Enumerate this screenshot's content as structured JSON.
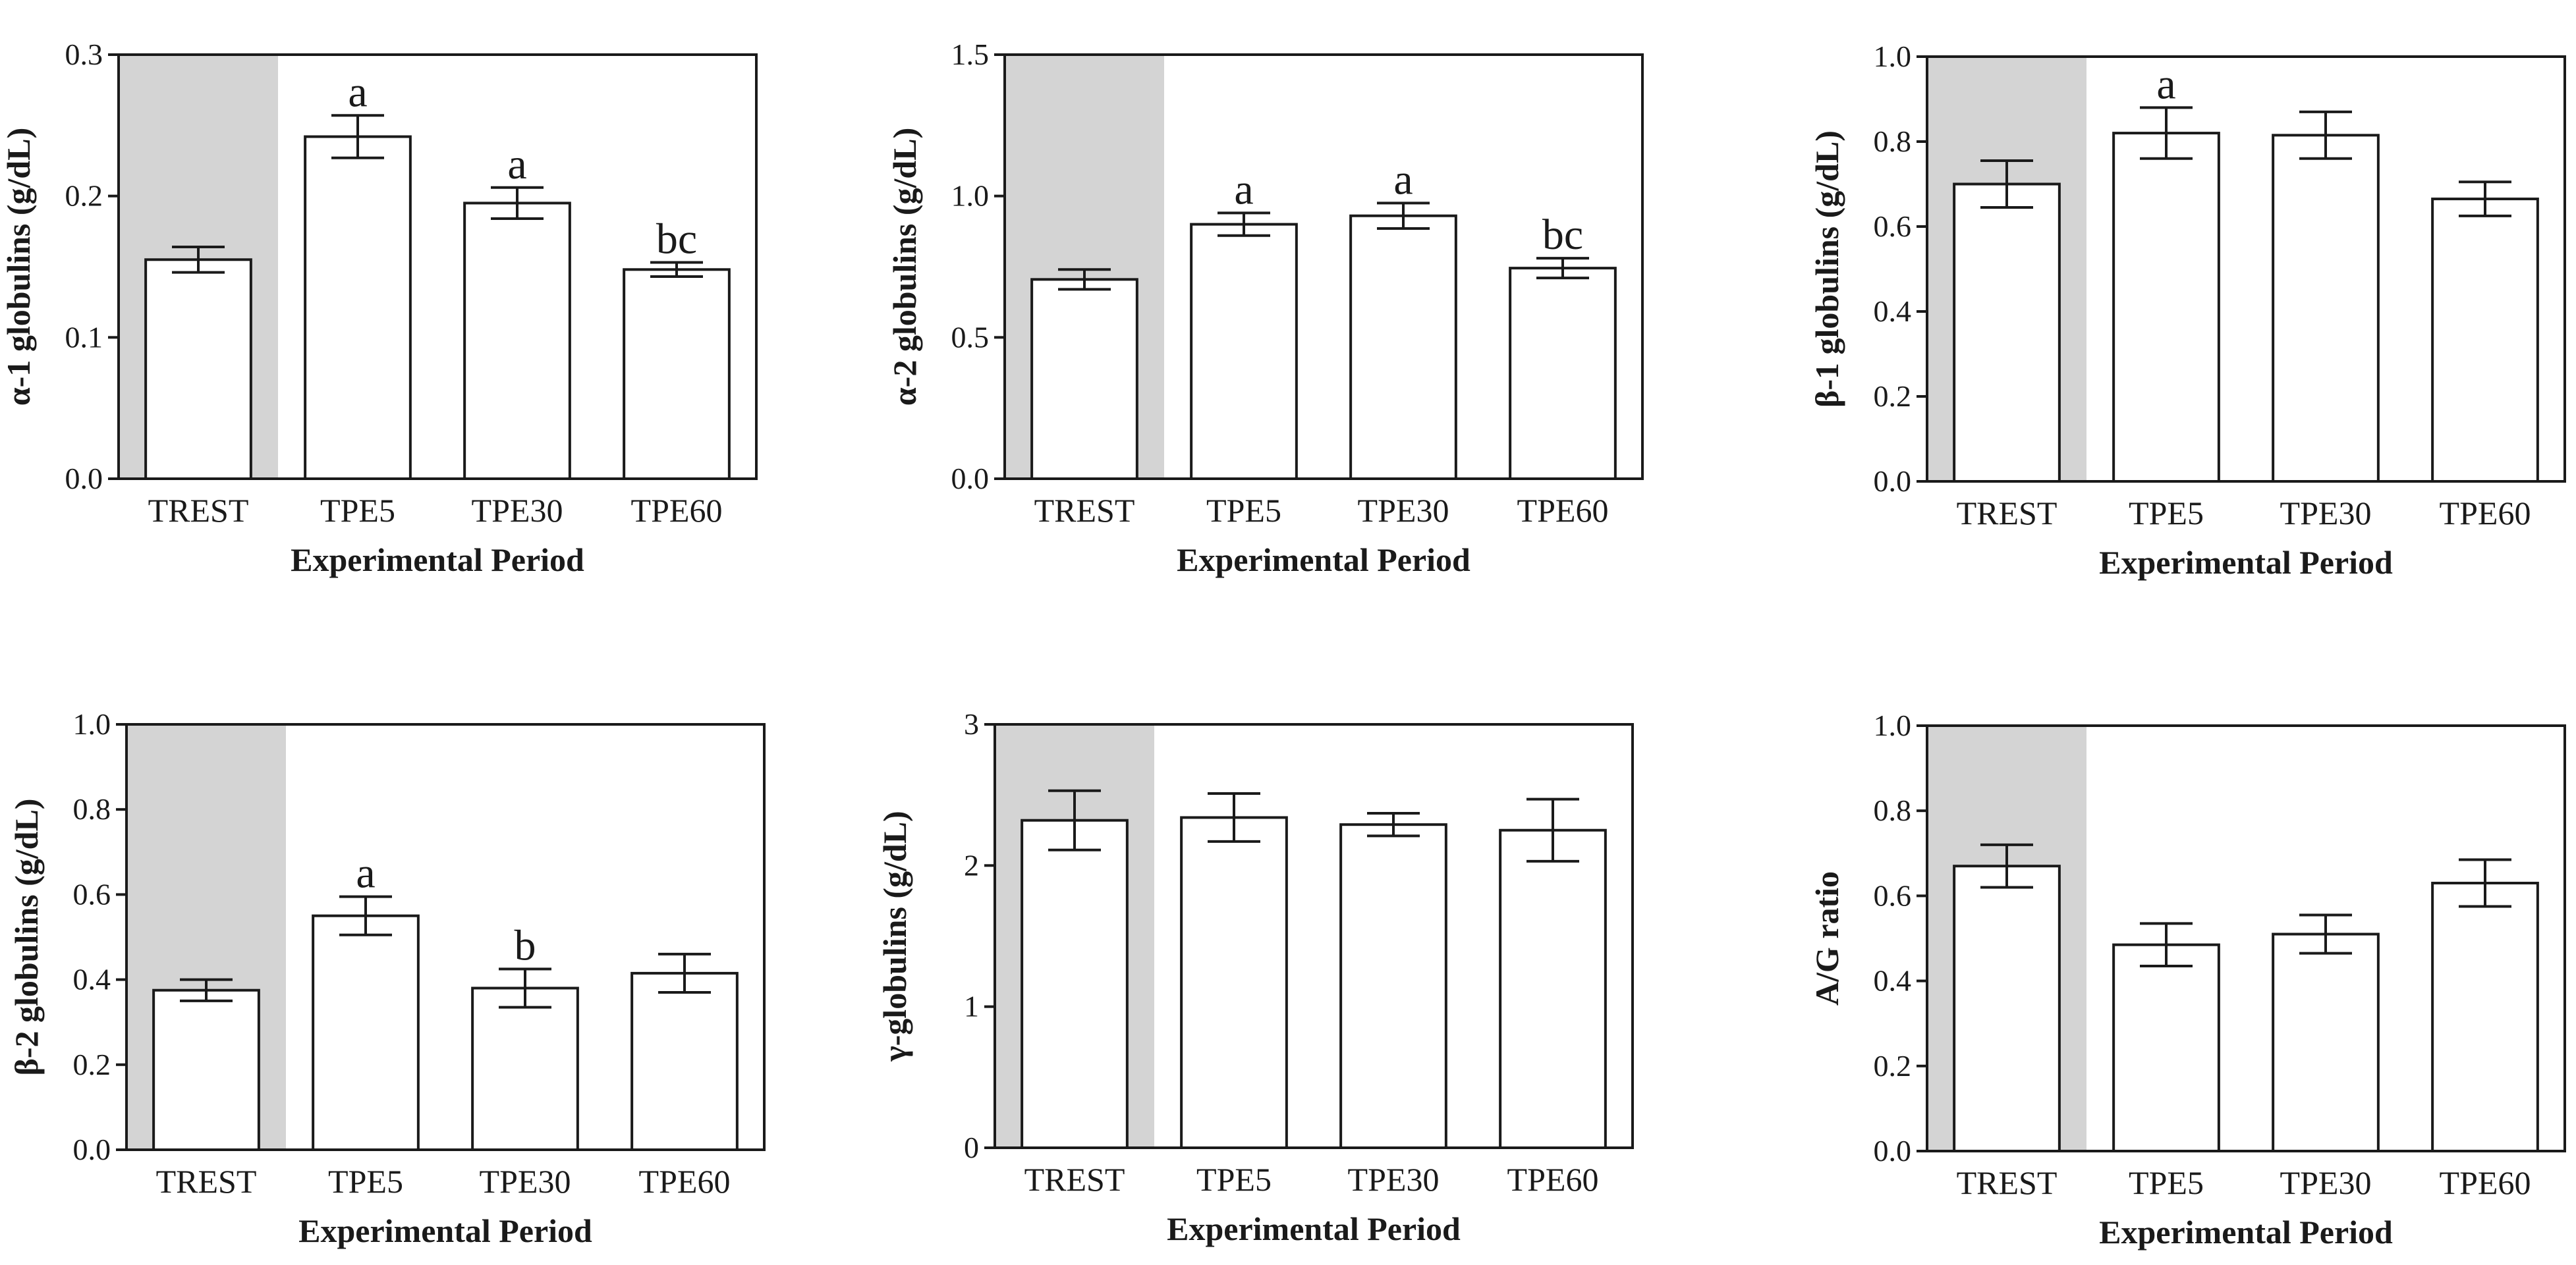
{
  "chart_data": [
    {
      "type": "bar",
      "title": "",
      "xlabel": "Experimental Period",
      "ylabel": "α-1 globulins (g/dL)",
      "categories": [
        "TREST",
        "TPE5",
        "TPE30",
        "TPE60"
      ],
      "values": [
        0.155,
        0.242,
        0.195,
        0.148
      ],
      "errors": [
        0.009,
        0.015,
        0.011,
        0.005
      ],
      "significance": [
        "",
        "a",
        "a",
        "bc"
      ],
      "ylim": [
        0,
        0.3
      ],
      "yticks": [
        "0.0",
        "0.1",
        "0.2",
        "0.3"
      ],
      "shaded_category": "TREST",
      "grid": false
    },
    {
      "type": "bar",
      "title": "",
      "xlabel": "Experimental Period",
      "ylabel": "α-2 globulins (g/dL)",
      "categories": [
        "TREST",
        "TPE5",
        "TPE30",
        "TPE60"
      ],
      "values": [
        0.705,
        0.9,
        0.93,
        0.745
      ],
      "errors": [
        0.035,
        0.04,
        0.045,
        0.035
      ],
      "significance": [
        "",
        "a",
        "a",
        "bc"
      ],
      "ylim": [
        0,
        1.5
      ],
      "yticks": [
        "0.0",
        "0.5",
        "1.0",
        "1.5"
      ],
      "shaded_category": "TREST",
      "grid": false
    },
    {
      "type": "bar",
      "title": "",
      "xlabel": "Experimental Period",
      "ylabel": "β-1 globulins (g/dL)",
      "categories": [
        "TREST",
        "TPE5",
        "TPE30",
        "TPE60"
      ],
      "values": [
        0.7,
        0.82,
        0.815,
        0.665
      ],
      "errors": [
        0.055,
        0.06,
        0.055,
        0.04
      ],
      "significance": [
        "",
        "a",
        "",
        ""
      ],
      "ylim": [
        0,
        1.0
      ],
      "yticks": [
        "0.0",
        "0.2",
        "0.4",
        "0.6",
        "0.8",
        "1.0"
      ],
      "shaded_category": "TREST",
      "grid": false
    },
    {
      "type": "bar",
      "title": "",
      "xlabel": "Experimental Period",
      "ylabel": "β-2 globulins (g/dL)",
      "categories": [
        "TREST",
        "TPE5",
        "TPE30",
        "TPE60"
      ],
      "values": [
        0.375,
        0.55,
        0.38,
        0.415
      ],
      "errors": [
        0.025,
        0.045,
        0.045,
        0.045
      ],
      "significance": [
        "",
        "a",
        "b",
        ""
      ],
      "ylim": [
        0,
        1.0
      ],
      "yticks": [
        "0.0",
        "0.2",
        "0.4",
        "0.6",
        "0.8",
        "1.0"
      ],
      "shaded_category": "TREST",
      "grid": false
    },
    {
      "type": "bar",
      "title": "",
      "xlabel": "Experimental Period",
      "ylabel": "γ-globulins (g/dL)",
      "categories": [
        "TREST",
        "TPE5",
        "TPE30",
        "TPE60"
      ],
      "values": [
        2.32,
        2.34,
        2.29,
        2.25
      ],
      "errors": [
        0.21,
        0.17,
        0.08,
        0.22
      ],
      "significance": [
        "",
        "",
        "",
        ""
      ],
      "ylim": [
        0,
        3
      ],
      "yticks": [
        "0",
        "1",
        "2",
        "3"
      ],
      "shaded_category": "TREST",
      "grid": false
    },
    {
      "type": "bar",
      "title": "",
      "xlabel": "Experimental Period",
      "ylabel": "A/G ratio",
      "categories": [
        "TREST",
        "TPE5",
        "TPE30",
        "TPE60"
      ],
      "values": [
        0.67,
        0.485,
        0.51,
        0.63
      ],
      "errors": [
        0.05,
        0.05,
        0.045,
        0.055
      ],
      "significance": [
        "",
        "",
        "",
        ""
      ],
      "ylim": [
        0,
        1.0
      ],
      "yticks": [
        "0.0",
        "0.2",
        "0.4",
        "0.6",
        "0.8",
        "1.0"
      ],
      "shaded_category": "TREST",
      "grid": false
    }
  ],
  "colors": {
    "shade": "#d4d4d4",
    "bar_fill": "#ffffff",
    "stroke": "#1a1a1a"
  }
}
